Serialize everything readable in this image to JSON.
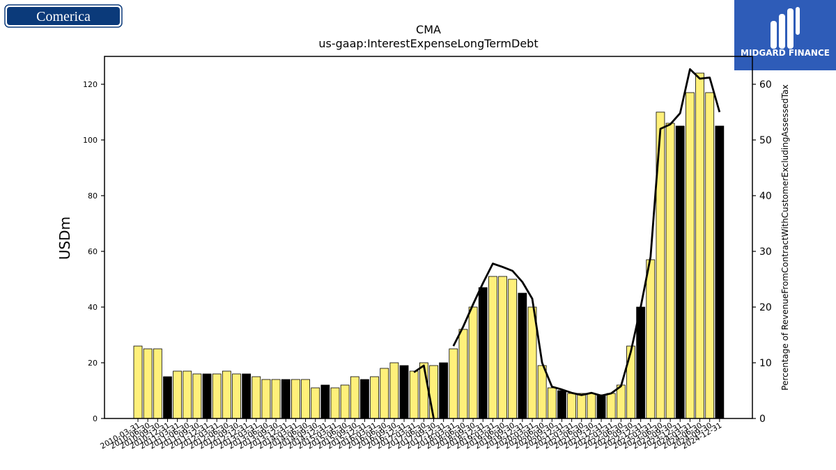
{
  "brand_left": {
    "name": "Comerica",
    "color": "#0b3a7a"
  },
  "brand_right": {
    "name": "MIDGARD FINANCE",
    "color": "#2e5cb8",
    "icon": "midgard-logo-icon"
  },
  "chart_data": {
    "type": "bar",
    "title": "CMA",
    "subtitle": "us-gaap:InterestExpenseLongTermDebt",
    "ylabel": "USDm",
    "y2label": "Percentage of RevenueFromContractWithCustomerExcludingAssessedTax",
    "ylim": [
      0,
      130
    ],
    "y2lim": [
      0,
      65
    ],
    "yticks": [
      0,
      20,
      40,
      60,
      80,
      100,
      120
    ],
    "y2ticks": [
      0,
      10,
      20,
      30,
      40,
      50,
      60
    ],
    "grid": false,
    "colors": {
      "quarterly": "#fff07a",
      "annual": "#000000",
      "line": "#000000"
    },
    "categories": [
      "2010-03-31",
      "2010-06-30",
      "2010-09-30",
      "2010-12-31",
      "2011-03-31",
      "2011-06-30",
      "2011-09-30",
      "2011-12-31",
      "2012-03-31",
      "2012-06-30",
      "2012-09-30",
      "2012-12-31",
      "2013-03-31",
      "2013-06-30",
      "2013-09-30",
      "2013-12-31",
      "2014-03-31",
      "2014-06-30",
      "2014-09-30",
      "2014-12-31",
      "2015-03-31",
      "2015-06-30",
      "2015-09-30",
      "2015-12-31",
      "2016-03-31",
      "2016-06-30",
      "2016-09-30",
      "2016-12-31",
      "2017-03-31",
      "2017-06-30",
      "2017-09-30",
      "2017-12-31",
      "2018-03-31",
      "2018-06-30",
      "2018-09-30",
      "2018-12-31",
      "2019-03-31",
      "2019-06-30",
      "2019-09-30",
      "2019-12-31",
      "2020-03-31",
      "2020-06-30",
      "2020-09-30",
      "2020-12-31",
      "2021-03-31",
      "2021-06-30",
      "2021-09-30",
      "2021-12-31",
      "2022-03-31",
      "2022-06-30",
      "2022-09-30",
      "2022-12-31",
      "2023-03-31",
      "2023-06-30",
      "2023-09-30",
      "2023-12-31",
      "2024-03-31",
      "2024-06-30",
      "2024-09-30",
      "2024-12-31"
    ],
    "values": [
      26,
      25,
      25,
      15,
      17,
      17,
      16,
      16,
      16,
      17,
      16,
      16,
      15,
      14,
      14,
      14,
      14,
      14,
      11,
      12,
      11,
      12,
      15,
      14,
      15,
      18,
      20,
      19,
      17,
      20,
      19,
      20,
      25,
      32,
      40,
      47,
      51,
      51,
      50,
      45,
      40,
      19,
      11,
      10,
      9,
      9,
      9,
      8.5,
      9,
      12,
      26,
      40,
      57,
      110,
      106,
      105,
      117,
      124,
      117,
      105
    ],
    "annual_flags": [
      0,
      0,
      0,
      1,
      0,
      0,
      0,
      1,
      0,
      0,
      0,
      1,
      0,
      0,
      0,
      1,
      0,
      0,
      0,
      1,
      0,
      0,
      0,
      1,
      0,
      0,
      0,
      1,
      0,
      0,
      0,
      1,
      0,
      0,
      0,
      1,
      0,
      0,
      0,
      1,
      0,
      0,
      0,
      1,
      0,
      0,
      0,
      1,
      0,
      0,
      0,
      1,
      0,
      0,
      0,
      1,
      0,
      0,
      0,
      1
    ],
    "line_values": [
      null,
      null,
      null,
      null,
      null,
      null,
      null,
      null,
      null,
      null,
      null,
      null,
      null,
      null,
      null,
      null,
      null,
      null,
      null,
      null,
      null,
      null,
      null,
      null,
      null,
      null,
      null,
      null,
      8.3,
      9.5,
      0,
      null,
      13,
      16.5,
      20.5,
      24.3,
      27.8,
      27.2,
      26.5,
      24.5,
      21.5,
      10,
      5.7,
      5.2,
      4.6,
      4.2,
      4.6,
      4.1,
      4.5,
      5.8,
      12,
      20,
      29,
      52,
      52.8,
      54.8,
      62.7,
      61,
      61.2,
      55
    ]
  }
}
